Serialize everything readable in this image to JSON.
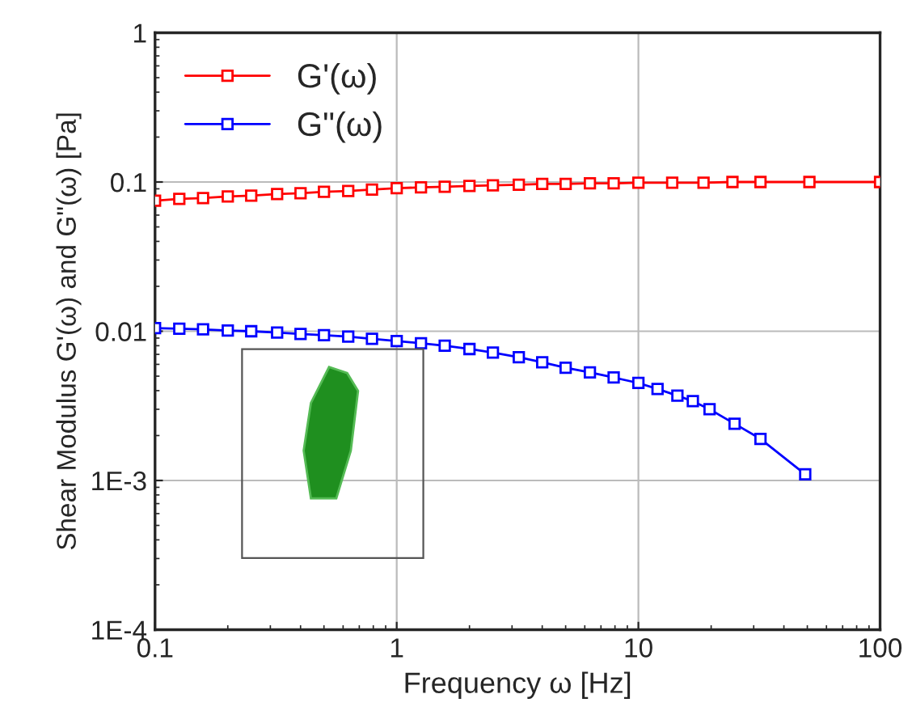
{
  "chart_data": {
    "type": "line",
    "xlabel": "Frequency ω [Hz]",
    "ylabel": "Shear Modulus G'(ω) and G\"(ω) [Pa]",
    "log": "xy",
    "xlim": [
      0.1,
      100
    ],
    "ylim": [
      0.0001,
      1
    ],
    "xticks": [
      0.1,
      1,
      10,
      100
    ],
    "yticks": [
      {
        "value": 0.0001,
        "label": "1E-4"
      },
      {
        "value": 0.001,
        "label": "1E-3"
      },
      {
        "value": 0.01,
        "label": "0.01"
      },
      {
        "value": 0.1,
        "label": "0.1"
      },
      {
        "value": 1,
        "label": "1"
      }
    ],
    "grid": true,
    "legend": "top left",
    "marker": "square",
    "line_style": "solid",
    "series": [
      {
        "name": "G'(ω)",
        "color": "#ff0000",
        "x": [
          0.1,
          0.126,
          0.158,
          0.2,
          0.25,
          0.32,
          0.4,
          0.5,
          0.63,
          0.79,
          1,
          1.26,
          1.58,
          2,
          2.5,
          3.2,
          4,
          5,
          6.3,
          7.9,
          10,
          13.8,
          18.6,
          24.5,
          32,
          51,
          100
        ],
        "values": [
          0.075,
          0.077,
          0.078,
          0.08,
          0.081,
          0.083,
          0.084,
          0.086,
          0.087,
          0.089,
          0.091,
          0.092,
          0.093,
          0.094,
          0.095,
          0.096,
          0.097,
          0.097,
          0.098,
          0.098,
          0.099,
          0.099,
          0.099,
          0.1,
          0.1,
          0.1,
          0.1
        ]
      },
      {
        "name": "G\"(ω)",
        "color": "#0000ff",
        "x": [
          0.1,
          0.126,
          0.158,
          0.2,
          0.25,
          0.32,
          0.4,
          0.5,
          0.63,
          0.79,
          1,
          1.26,
          1.58,
          2,
          2.5,
          3.2,
          4,
          5,
          6.3,
          7.9,
          10,
          12,
          14.5,
          16.8,
          19.7,
          25,
          32,
          49
        ],
        "values": [
          0.0105,
          0.0104,
          0.0103,
          0.0101,
          0.01,
          0.0098,
          0.0096,
          0.0094,
          0.0092,
          0.0089,
          0.0086,
          0.0083,
          0.008,
          0.0076,
          0.0072,
          0.0067,
          0.0062,
          0.0057,
          0.0053,
          0.0049,
          0.0045,
          0.0041,
          0.0037,
          0.0034,
          0.003,
          0.0024,
          0.0019,
          0.0011
        ]
      }
    ]
  }
}
